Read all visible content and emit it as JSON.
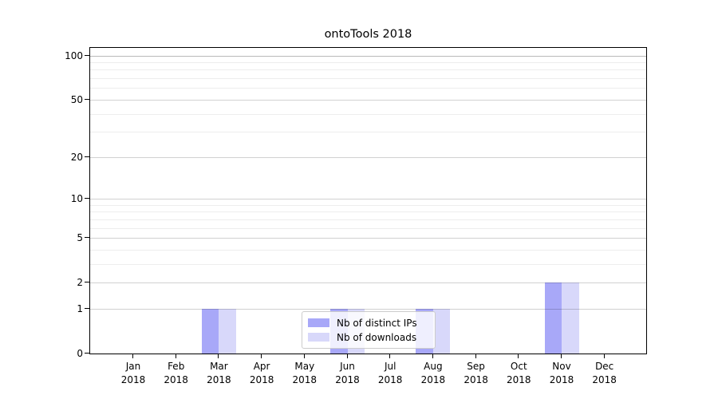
{
  "title": "ontoTools 2018",
  "chart_data": {
    "type": "bar",
    "title": "ontoTools 2018",
    "x_categories": [
      "Jan",
      "Feb",
      "Mar",
      "Apr",
      "May",
      "Jun",
      "Jul",
      "Aug",
      "Sep",
      "Oct",
      "Nov",
      "Dec"
    ],
    "x_year": "2018",
    "series": [
      {
        "name": "Nb of distinct IPs",
        "color": "#a8a8f8",
        "values": [
          0,
          0,
          1,
          0,
          0,
          1,
          0,
          1,
          0,
          0,
          2,
          0
        ]
      },
      {
        "name": "Nb of downloads",
        "color": "#d8d8fa",
        "values": [
          0,
          0,
          1,
          0,
          0,
          1,
          0,
          1,
          0,
          0,
          2,
          0
        ]
      }
    ],
    "xlabel": "",
    "ylabel": "",
    "y_scale": "log10(1+value)",
    "ylim": [
      0,
      113
    ],
    "y_major_ticks": [
      0,
      1,
      2,
      5,
      10,
      20,
      50,
      100
    ],
    "y_minor_gridlines": [
      3,
      4,
      6,
      7,
      8,
      9,
      30,
      40,
      60,
      70,
      80,
      90
    ],
    "grid": "on",
    "legend_position": "lower center inside"
  }
}
